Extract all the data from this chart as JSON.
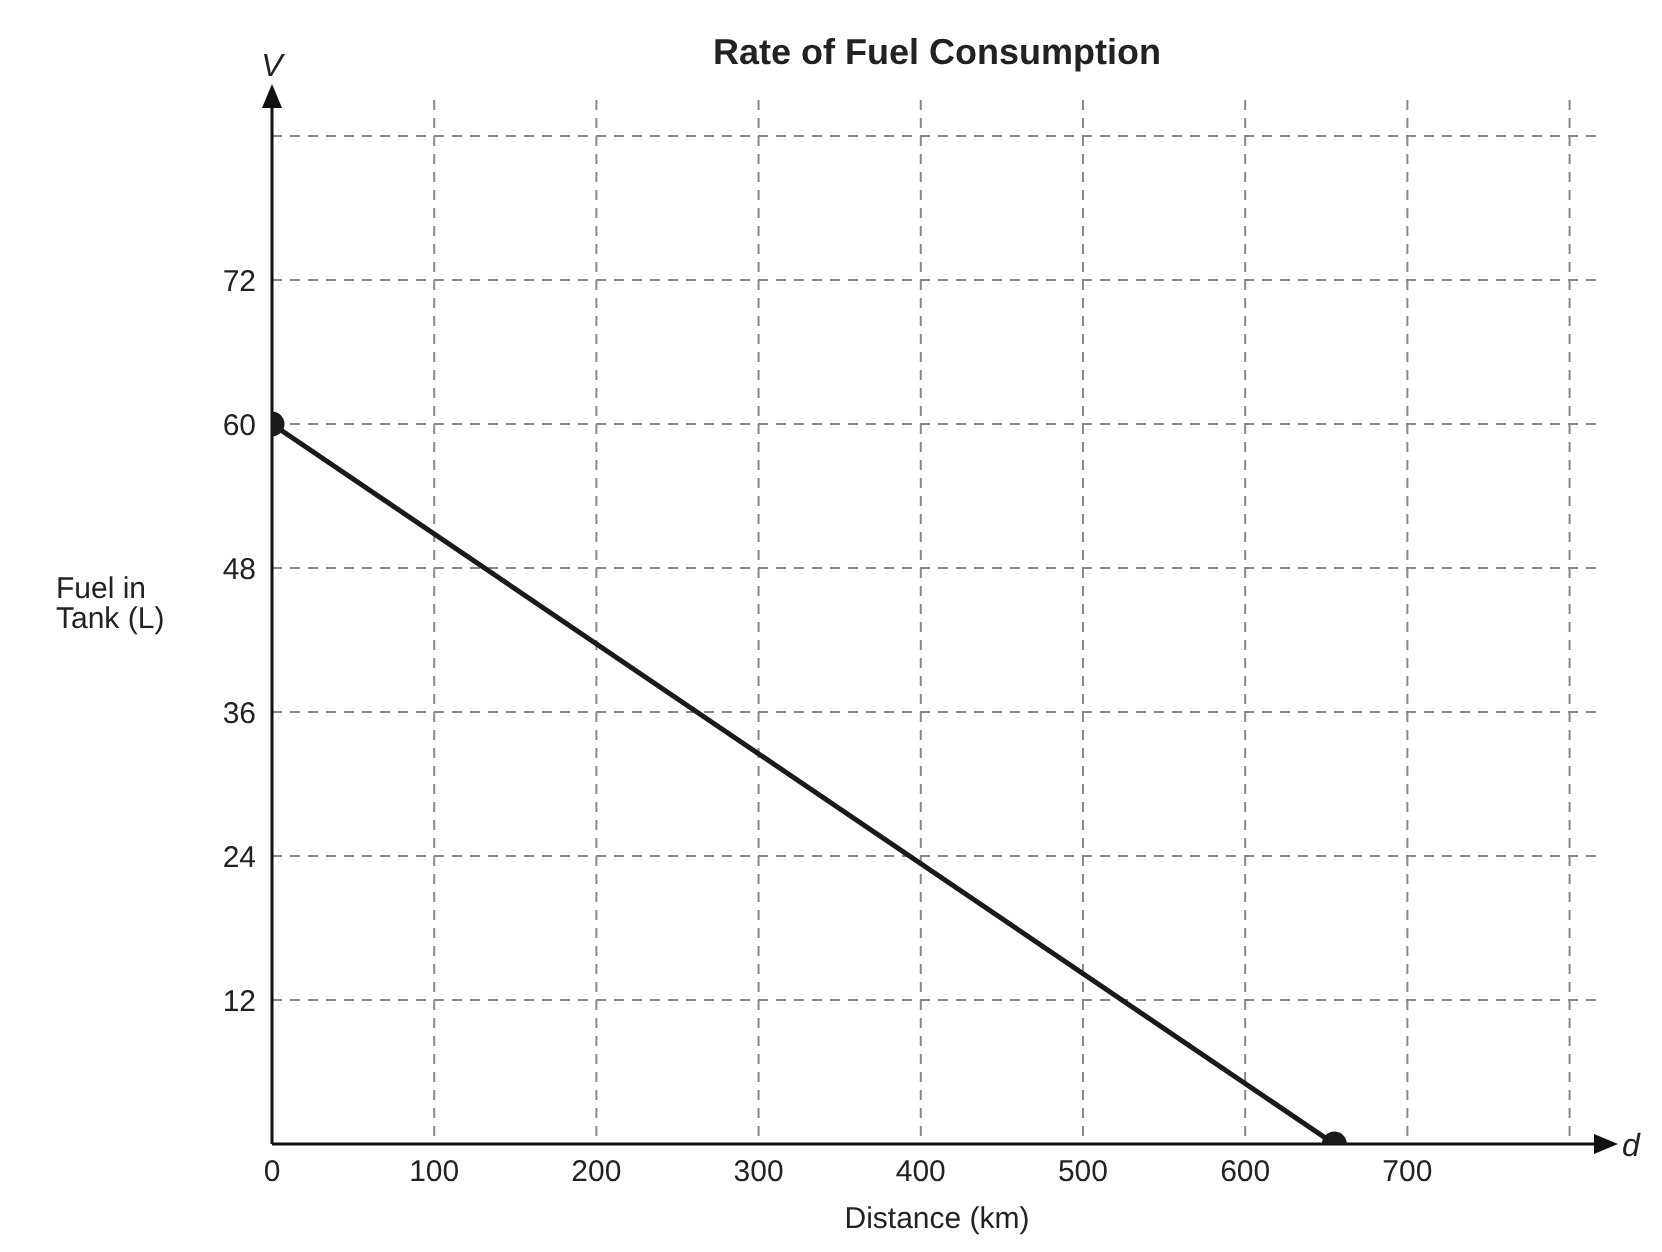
{
  "chart_data": {
    "type": "line",
    "title": "Rate of Fuel Consumption",
    "xlabel": "Distance (km)",
    "ylabel": "Fuel in Tank (L)",
    "x": [
      0,
      655
    ],
    "series": [
      {
        "color": "#1a1a1a",
        "values": [
          60,
          0
        ]
      }
    ],
    "xlim": [
      0,
      820
    ],
    "ylim": [
      0,
      87
    ],
    "xticks": [
      0,
      100,
      200,
      300,
      400,
      500,
      600,
      700,
      {
        "value": 800,
        "label": null
      }
    ],
    "yticks": [
      {
        "value": 0,
        "label": null
      },
      12,
      24,
      36,
      48,
      60,
      72,
      {
        "value": 84,
        "label": null
      }
    ],
    "grid": true,
    "marker": "circle",
    "line_style": "solid",
    "annotations": [
      "V",
      "d"
    ]
  }
}
